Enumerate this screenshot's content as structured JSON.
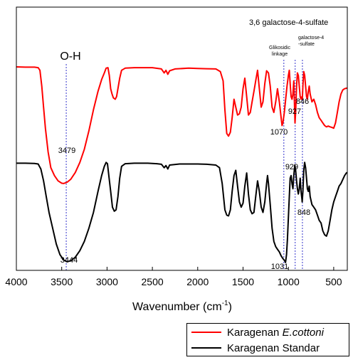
{
  "chart_data": {
    "type": "line",
    "xlabel_main": "Wavenumber (cm",
    "xlabel_sup": "-1",
    "xlabel_end": ")",
    "xlim": [
      4000,
      350
    ],
    "x_ticks": [
      "4000",
      "3500",
      "3000",
      "2500",
      "2000",
      "1500",
      "1000",
      "500"
    ],
    "x_tick_values": [
      4000,
      3500,
      3000,
      2500,
      2000,
      1500,
      1000,
      500
    ],
    "ylim": [
      0,
      1
    ],
    "series": [
      {
        "name_main": "Karagenan ",
        "name_italic": "E.cottoni",
        "color": "#ff0000",
        "points": [
          [
            4000,
            0.773
          ],
          [
            3900,
            0.772
          ],
          [
            3800,
            0.772
          ],
          [
            3760,
            0.77
          ],
          [
            3740,
            0.76
          ],
          [
            3720,
            0.7
          ],
          [
            3700,
            0.62
          ],
          [
            3680,
            0.54
          ],
          [
            3650,
            0.45
          ],
          [
            3620,
            0.39
          ],
          [
            3580,
            0.36
          ],
          [
            3540,
            0.34
          ],
          [
            3500,
            0.331
          ],
          [
            3479,
            0.33
          ],
          [
            3440,
            0.335
          ],
          [
            3400,
            0.346
          ],
          [
            3350,
            0.372
          ],
          [
            3300,
            0.41
          ],
          [
            3250,
            0.46
          ],
          [
            3200,
            0.53
          ],
          [
            3150,
            0.61
          ],
          [
            3100,
            0.68
          ],
          [
            3060,
            0.725
          ],
          [
            3030,
            0.75
          ],
          [
            3010,
            0.768
          ],
          [
            2990,
            0.77
          ],
          [
            2975,
            0.74
          ],
          [
            2960,
            0.69
          ],
          [
            2945,
            0.67
          ],
          [
            2930,
            0.655
          ],
          [
            2910,
            0.65
          ],
          [
            2895,
            0.66
          ],
          [
            2880,
            0.69
          ],
          [
            2860,
            0.73
          ],
          [
            2840,
            0.76
          ],
          [
            2800,
            0.768
          ],
          [
            2700,
            0.77
          ],
          [
            2500,
            0.77
          ],
          [
            2400,
            0.765
          ],
          [
            2370,
            0.75
          ],
          [
            2350,
            0.76
          ],
          [
            2330,
            0.745
          ],
          [
            2310,
            0.758
          ],
          [
            2250,
            0.765
          ],
          [
            2100,
            0.768
          ],
          [
            2000,
            0.767
          ],
          [
            1900,
            0.766
          ],
          [
            1800,
            0.765
          ],
          [
            1750,
            0.755
          ],
          [
            1720,
            0.72
          ],
          [
            1700,
            0.61
          ],
          [
            1680,
            0.52
          ],
          [
            1660,
            0.51
          ],
          [
            1640,
            0.525
          ],
          [
            1620,
            0.58
          ],
          [
            1600,
            0.65
          ],
          [
            1580,
            0.62
          ],
          [
            1560,
            0.59
          ],
          [
            1540,
            0.595
          ],
          [
            1520,
            0.62
          ],
          [
            1500,
            0.69
          ],
          [
            1480,
            0.73
          ],
          [
            1460,
            0.66
          ],
          [
            1440,
            0.59
          ],
          [
            1420,
            0.6
          ],
          [
            1400,
            0.64
          ],
          [
            1380,
            0.68
          ],
          [
            1360,
            0.72
          ],
          [
            1340,
            0.76
          ],
          [
            1320,
            0.69
          ],
          [
            1300,
            0.62
          ],
          [
            1280,
            0.64
          ],
          [
            1260,
            0.71
          ],
          [
            1240,
            0.758
          ],
          [
            1220,
            0.75
          ],
          [
            1200,
            0.7
          ],
          [
            1180,
            0.62
          ],
          [
            1160,
            0.6
          ],
          [
            1140,
            0.64
          ],
          [
            1120,
            0.69
          ],
          [
            1100,
            0.64
          ],
          [
            1080,
            0.58
          ],
          [
            1070,
            0.55
          ],
          [
            1060,
            0.56
          ],
          [
            1045,
            0.6
          ],
          [
            1030,
            0.65
          ],
          [
            1015,
            0.7
          ],
          [
            1000,
            0.74
          ],
          [
            990,
            0.76
          ],
          [
            980,
            0.71
          ],
          [
            970,
            0.66
          ],
          [
            960,
            0.65
          ],
          [
            950,
            0.67
          ],
          [
            940,
            0.72
          ],
          [
            930,
            0.6
          ],
          [
            927,
            0.56
          ],
          [
            920,
            0.6
          ],
          [
            910,
            0.7
          ],
          [
            900,
            0.75
          ],
          [
            890,
            0.74
          ],
          [
            880,
            0.7
          ],
          [
            870,
            0.66
          ],
          [
            860,
            0.65
          ],
          [
            850,
            0.66
          ],
          [
            846,
            0.65
          ],
          [
            840,
            0.7
          ],
          [
            830,
            0.755
          ],
          [
            820,
            0.74
          ],
          [
            810,
            0.7
          ],
          [
            800,
            0.66
          ],
          [
            790,
            0.65
          ],
          [
            780,
            0.68
          ],
          [
            770,
            0.7
          ],
          [
            760,
            0.67
          ],
          [
            740,
            0.64
          ],
          [
            720,
            0.65
          ],
          [
            700,
            0.63
          ],
          [
            680,
            0.6
          ],
          [
            660,
            0.58
          ],
          [
            640,
            0.57
          ],
          [
            620,
            0.56
          ],
          [
            600,
            0.55
          ],
          [
            580,
            0.545
          ],
          [
            560,
            0.548
          ],
          [
            540,
            0.545
          ],
          [
            520,
            0.543
          ],
          [
            500,
            0.54
          ],
          [
            480,
            0.56
          ],
          [
            460,
            0.6
          ],
          [
            440,
            0.64
          ],
          [
            420,
            0.67
          ],
          [
            400,
            0.685
          ],
          [
            380,
            0.69
          ],
          [
            360,
            0.692
          ],
          [
            350,
            0.693
          ]
        ]
      },
      {
        "name_main": "Karagenan Standar",
        "name_italic": "",
        "color": "#000000",
        "points": [
          [
            4000,
            0.407
          ],
          [
            3900,
            0.407
          ],
          [
            3800,
            0.406
          ],
          [
            3760,
            0.404
          ],
          [
            3730,
            0.385
          ],
          [
            3700,
            0.34
          ],
          [
            3670,
            0.28
          ],
          [
            3640,
            0.22
          ],
          [
            3600,
            0.16
          ],
          [
            3560,
            0.1
          ],
          [
            3520,
            0.06
          ],
          [
            3480,
            0.04
          ],
          [
            3444,
            0.033
          ],
          [
            3400,
            0.036
          ],
          [
            3350,
            0.05
          ],
          [
            3300,
            0.075
          ],
          [
            3250,
            0.11
          ],
          [
            3200,
            0.16
          ],
          [
            3150,
            0.22
          ],
          [
            3100,
            0.3
          ],
          [
            3060,
            0.36
          ],
          [
            3030,
            0.395
          ],
          [
            3010,
            0.41
          ],
          [
            2995,
            0.405
          ],
          [
            2980,
            0.36
          ],
          [
            2960,
            0.3
          ],
          [
            2940,
            0.24
          ],
          [
            2920,
            0.225
          ],
          [
            2900,
            0.23
          ],
          [
            2880,
            0.28
          ],
          [
            2860,
            0.35
          ],
          [
            2840,
            0.395
          ],
          [
            2800,
            0.405
          ],
          [
            2700,
            0.407
          ],
          [
            2550,
            0.407
          ],
          [
            2450,
            0.405
          ],
          [
            2400,
            0.403
          ],
          [
            2370,
            0.39
          ],
          [
            2350,
            0.398
          ],
          [
            2330,
            0.385
          ],
          [
            2310,
            0.4
          ],
          [
            2200,
            0.404
          ],
          [
            2000,
            0.404
          ],
          [
            1900,
            0.403
          ],
          [
            1800,
            0.4
          ],
          [
            1760,
            0.39
          ],
          [
            1730,
            0.33
          ],
          [
            1700,
            0.23
          ],
          [
            1680,
            0.21
          ],
          [
            1660,
            0.207
          ],
          [
            1640,
            0.23
          ],
          [
            1620,
            0.3
          ],
          [
            1600,
            0.36
          ],
          [
            1580,
            0.38
          ],
          [
            1560,
            0.32
          ],
          [
            1540,
            0.26
          ],
          [
            1520,
            0.24
          ],
          [
            1500,
            0.255
          ],
          [
            1480,
            0.32
          ],
          [
            1460,
            0.37
          ],
          [
            1440,
            0.29
          ],
          [
            1420,
            0.23
          ],
          [
            1400,
            0.215
          ],
          [
            1380,
            0.22
          ],
          [
            1360,
            0.28
          ],
          [
            1340,
            0.34
          ],
          [
            1320,
            0.3
          ],
          [
            1300,
            0.24
          ],
          [
            1280,
            0.22
          ],
          [
            1260,
            0.26
          ],
          [
            1240,
            0.33
          ],
          [
            1230,
            0.36
          ],
          [
            1220,
            0.33
          ],
          [
            1200,
            0.25
          ],
          [
            1180,
            0.16
          ],
          [
            1160,
            0.11
          ],
          [
            1140,
            0.09
          ],
          [
            1120,
            0.08
          ],
          [
            1100,
            0.07
          ],
          [
            1080,
            0.055
          ],
          [
            1060,
            0.045
          ],
          [
            1045,
            0.038
          ],
          [
            1031,
            0.03
          ],
          [
            1020,
            0.06
          ],
          [
            1010,
            0.12
          ],
          [
            1000,
            0.2
          ],
          [
            990,
            0.28
          ],
          [
            980,
            0.35
          ],
          [
            970,
            0.36
          ],
          [
            960,
            0.33
          ],
          [
            950,
            0.31
          ],
          [
            940,
            0.36
          ],
          [
            929,
            0.4
          ],
          [
            920,
            0.38
          ],
          [
            910,
            0.34
          ],
          [
            900,
            0.31
          ],
          [
            890,
            0.29
          ],
          [
            880,
            0.31
          ],
          [
            870,
            0.35
          ],
          [
            860,
            0.3
          ],
          [
            850,
            0.27
          ],
          [
            848,
            0.26
          ],
          [
            840,
            0.3
          ],
          [
            830,
            0.38
          ],
          [
            820,
            0.41
          ],
          [
            810,
            0.39
          ],
          [
            800,
            0.35
          ],
          [
            790,
            0.31
          ],
          [
            780,
            0.3
          ],
          [
            770,
            0.32
          ],
          [
            760,
            0.28
          ],
          [
            740,
            0.25
          ],
          [
            720,
            0.24
          ],
          [
            700,
            0.23
          ],
          [
            680,
            0.21
          ],
          [
            660,
            0.19
          ],
          [
            640,
            0.18
          ],
          [
            620,
            0.15
          ],
          [
            600,
            0.135
          ],
          [
            580,
            0.13
          ],
          [
            560,
            0.15
          ],
          [
            540,
            0.19
          ],
          [
            520,
            0.23
          ],
          [
            500,
            0.26
          ],
          [
            480,
            0.28
          ],
          [
            460,
            0.3
          ],
          [
            440,
            0.32
          ],
          [
            420,
            0.33
          ],
          [
            400,
            0.345
          ],
          [
            380,
            0.36
          ],
          [
            360,
            0.37
          ],
          [
            350,
            0.372
          ]
        ]
      }
    ],
    "vlines": [
      3450,
      1050,
      925,
      845
    ],
    "vline_color": "#3333cc",
    "annotations": {
      "oh": "O-H",
      "galacto36": "3,6 galactose-4-sulfate",
      "glik_line1": "Glikosidic",
      "glik_line2": "linkage",
      "g4s_line1": "galactose-4",
      "g4s_line2": "-sulfate",
      "red_3479": "3479",
      "red_1070": "1070",
      "red_927": "927",
      "red_846": "846",
      "blk_3444": "3444",
      "blk_1031": "1031",
      "blk_929": "929",
      "blk_848": "848"
    }
  }
}
